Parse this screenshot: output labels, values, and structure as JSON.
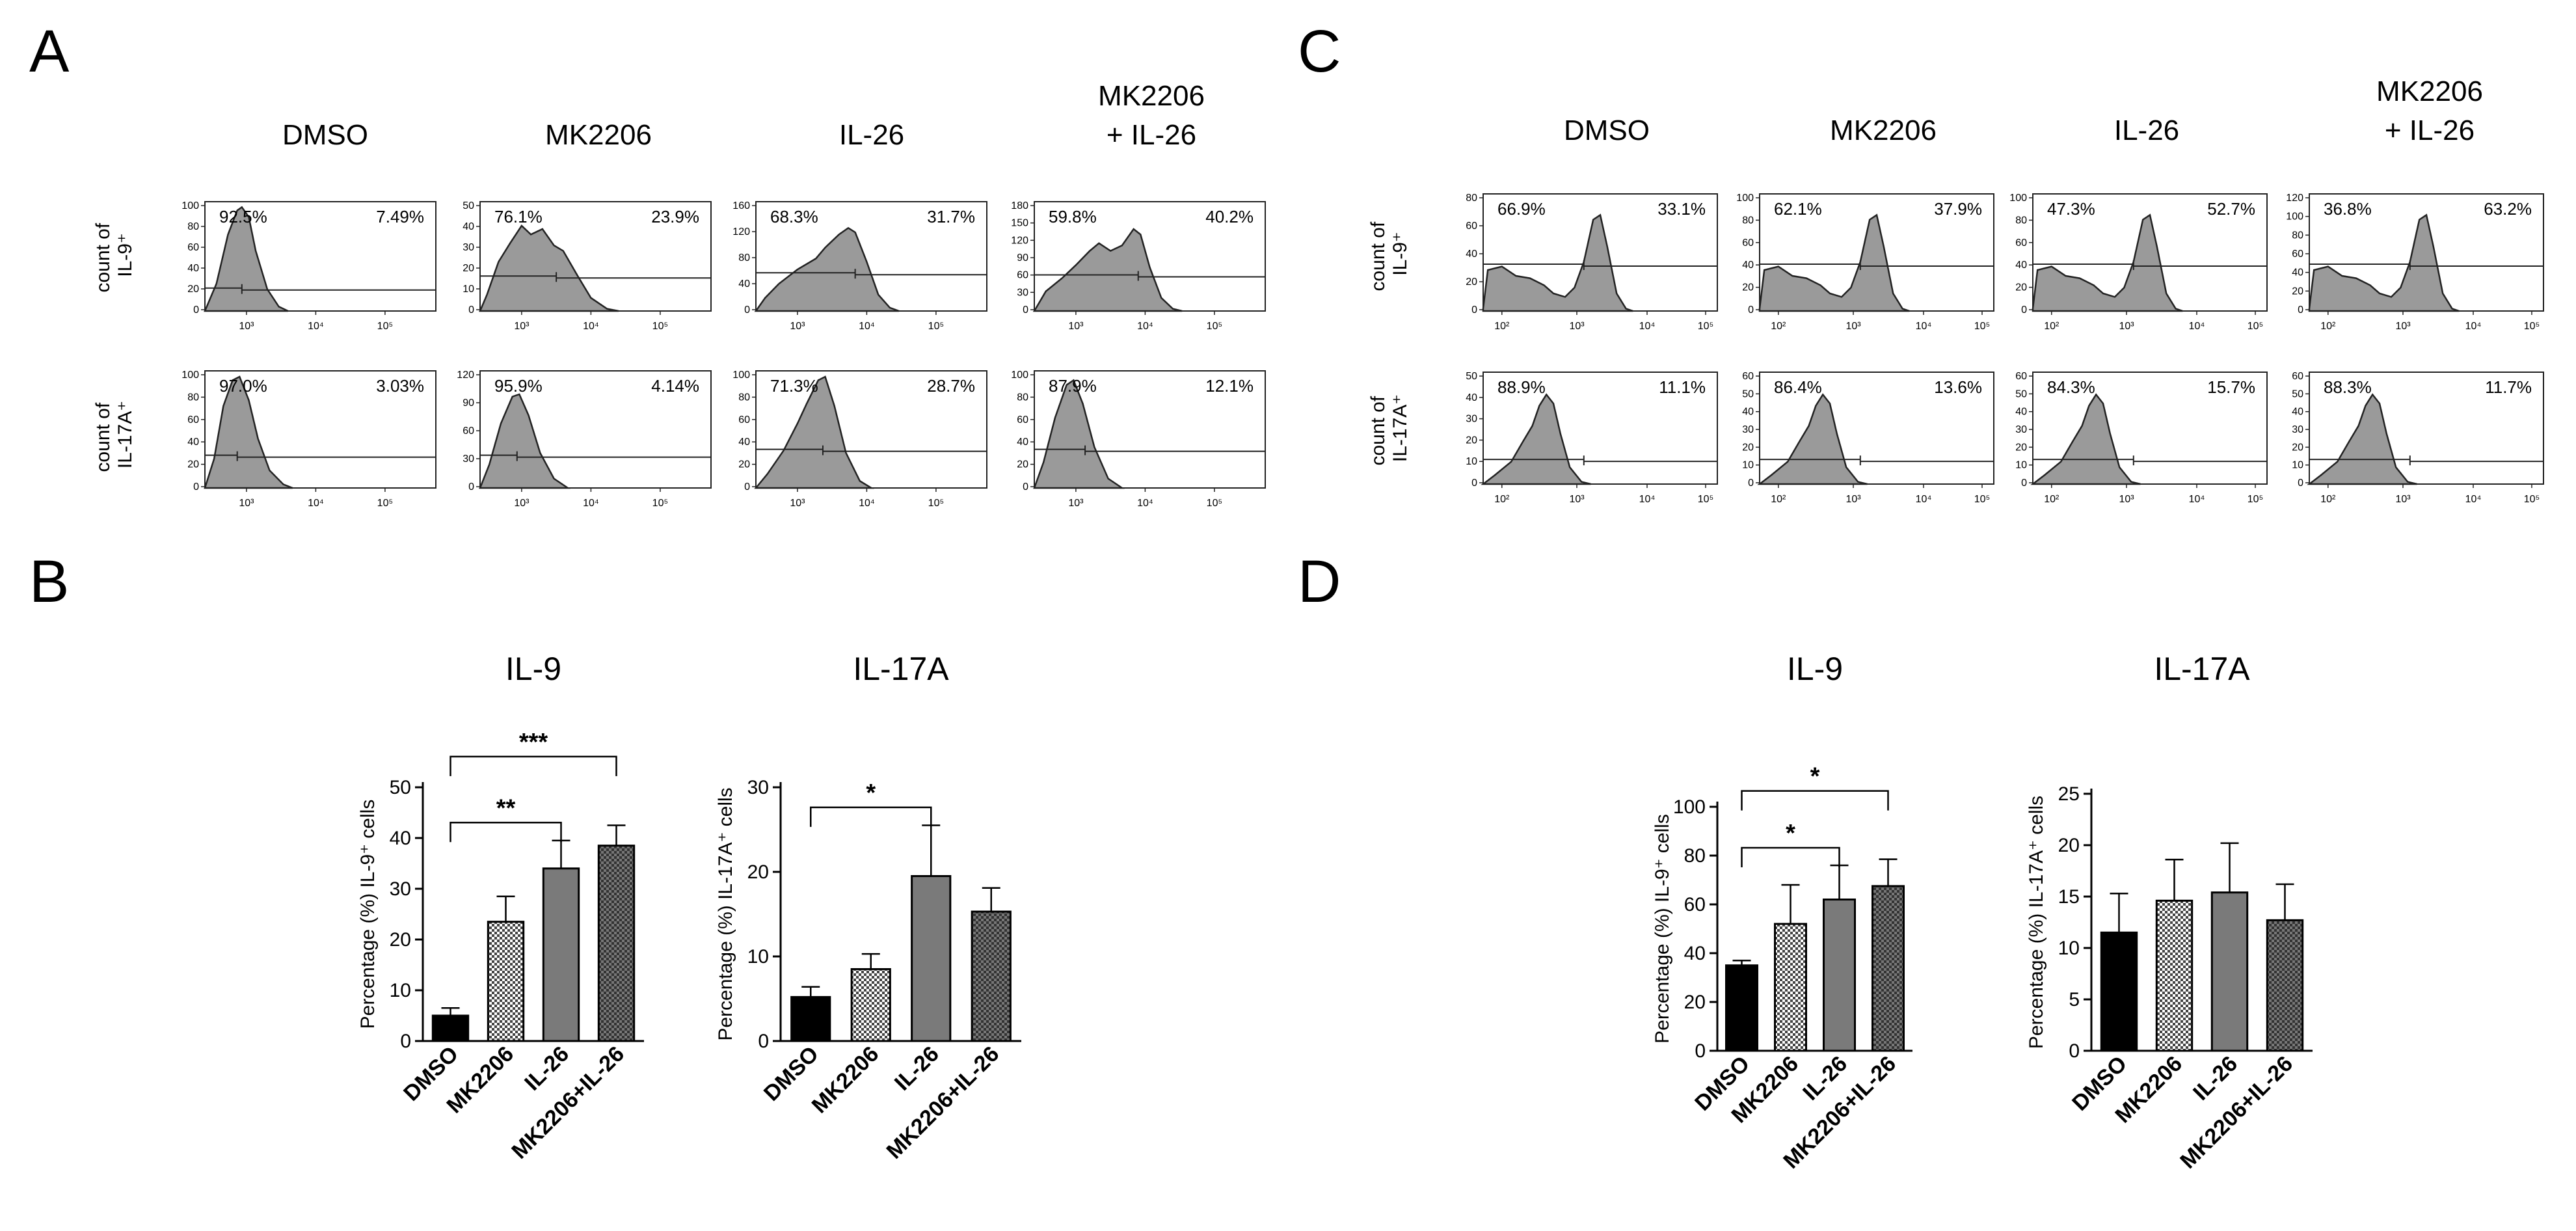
{
  "panels": {
    "A": {
      "letter": "A",
      "conditions": [
        "DMSO",
        "MK2206",
        "IL-26",
        "MK2206",
        "+ IL-26"
      ],
      "row_labels": [
        [
          "count of",
          "IL-9⁺"
        ],
        [
          "count of",
          "IL-17A⁺"
        ]
      ],
      "xticks": [
        "10³",
        "10⁴",
        "10⁵"
      ],
      "hists": [
        {
          "left": "92.5%",
          "right": "7.49%",
          "yticks": [
            "100",
            "80",
            "60",
            "40",
            "20",
            "0"
          ],
          "shape": "a_il9_dmso"
        },
        {
          "left": "76.1%",
          "right": "23.9%",
          "yticks": [
            "50",
            "40",
            "30",
            "20",
            "10",
            "0"
          ],
          "shape": "a_il9_mk"
        },
        {
          "left": "68.3%",
          "right": "31.7%",
          "yticks": [
            "160",
            "120",
            "80",
            "40",
            "0"
          ],
          "shape": "a_il9_il26"
        },
        {
          "left": "59.8%",
          "right": "40.2%",
          "yticks": [
            "180",
            "150",
            "120",
            "90",
            "60",
            "30",
            "0"
          ],
          "shape": "a_il9_combo"
        },
        {
          "left": "97.0%",
          "right": "3.03%",
          "yticks": [
            "100",
            "80",
            "60",
            "40",
            "20",
            "0"
          ],
          "shape": "a_il17_dmso"
        },
        {
          "left": "95.9%",
          "right": "4.14%",
          "yticks": [
            "120",
            "90",
            "60",
            "30",
            "0"
          ],
          "shape": "a_il17_mk"
        },
        {
          "left": "71.3%",
          "right": "28.7%",
          "yticks": [
            "100",
            "80",
            "60",
            "40",
            "20",
            "0"
          ],
          "shape": "a_il17_il26"
        },
        {
          "left": "87.9%",
          "right": "12.1%",
          "yticks": [
            "100",
            "80",
            "60",
            "40",
            "20",
            "0"
          ],
          "shape": "a_il17_combo"
        }
      ]
    },
    "C": {
      "letter": "C",
      "conditions": [
        "DMSO",
        "MK2206",
        "IL-26",
        "MK2206",
        "+ IL-26"
      ],
      "row_labels": [
        [
          "count of",
          "IL-9⁺"
        ],
        [
          "count of",
          "IL-17A⁺"
        ]
      ],
      "xticks": [
        "10²",
        "10³",
        "10⁴",
        "10⁵"
      ],
      "hists": [
        {
          "left": "66.9%",
          "right": "33.1%",
          "yticks": [
            "80",
            "60",
            "40",
            "20",
            "0"
          ],
          "shape": "c_il9"
        },
        {
          "left": "62.1%",
          "right": "37.9%",
          "yticks": [
            "100",
            "80",
            "60",
            "40",
            "20",
            "0"
          ],
          "shape": "c_il9"
        },
        {
          "left": "47.3%",
          "right": "52.7%",
          "yticks": [
            "100",
            "80",
            "60",
            "40",
            "20",
            "0"
          ],
          "shape": "c_il9"
        },
        {
          "left": "36.8%",
          "right": "63.2%",
          "yticks": [
            "120",
            "100",
            "80",
            "60",
            "40",
            "20",
            "0"
          ],
          "shape": "c_il9"
        },
        {
          "left": "88.9%",
          "right": "11.1%",
          "yticks": [
            "50",
            "40",
            "30",
            "20",
            "10",
            "0"
          ],
          "shape": "c_il17"
        },
        {
          "left": "86.4%",
          "right": "13.6%",
          "yticks": [
            "60",
            "50",
            "40",
            "30",
            "20",
            "10",
            "0"
          ],
          "shape": "c_il17"
        },
        {
          "left": "84.3%",
          "right": "15.7%",
          "yticks": [
            "60",
            "50",
            "40",
            "30",
            "20",
            "10",
            "0"
          ],
          "shape": "c_il17"
        },
        {
          "left": "88.3%",
          "right": "11.7%",
          "yticks": [
            "60",
            "50",
            "40",
            "30",
            "20",
            "10",
            "0"
          ],
          "shape": "c_il17"
        }
      ]
    },
    "B": {
      "letter": "B"
    },
    "D": {
      "letter": "D"
    }
  },
  "chart_data": [
    {
      "panel": "B",
      "type": "bar",
      "title": "IL-9",
      "ylabel": "Percentage (%) IL-9⁺ cells",
      "categories": [
        "DMSO",
        "MK2206",
        "IL-26",
        "MK2206+IL-26"
      ],
      "values": [
        5,
        23.5,
        34,
        38.5
      ],
      "errors": [
        1.5,
        5,
        5.5,
        4
      ],
      "ylim": [
        0,
        50
      ],
      "yticks": [
        0,
        10,
        20,
        30,
        40,
        50
      ],
      "significance": [
        {
          "from": 0,
          "to": 2,
          "label": "**"
        },
        {
          "from": 0,
          "to": 3,
          "label": "***"
        }
      ]
    },
    {
      "panel": "B",
      "type": "bar",
      "title": "IL-17A",
      "ylabel": "Percentage (%) IL-17A⁺ cells",
      "categories": [
        "DMSO",
        "MK2206",
        "IL-26",
        "MK2206+IL-26"
      ],
      "values": [
        5.2,
        8.5,
        19.5,
        15.3
      ],
      "errors": [
        1.2,
        1.8,
        6,
        2.8
      ],
      "ylim": [
        0,
        30
      ],
      "yticks": [
        0,
        10,
        20,
        30
      ],
      "significance": [
        {
          "from": 0,
          "to": 2,
          "label": "*"
        }
      ]
    },
    {
      "panel": "D",
      "type": "bar",
      "title": "IL-9",
      "ylabel": "Percentage (%) IL-9⁺ cells",
      "categories": [
        "DMSO",
        "MK2206",
        "IL-26",
        "MK2206+IL-26"
      ],
      "values": [
        35,
        52,
        62,
        67.5
      ],
      "errors": [
        2,
        16,
        14,
        11
      ],
      "ylim": [
        0,
        100
      ],
      "yticks": [
        0,
        20,
        40,
        60,
        80,
        100
      ],
      "significance": [
        {
          "from": 0,
          "to": 2,
          "label": "*"
        },
        {
          "from": 0,
          "to": 3,
          "label": "*"
        }
      ]
    },
    {
      "panel": "D",
      "type": "bar",
      "title": "IL-17A",
      "ylabel": "Percentage (%) IL-17A⁺ cells",
      "categories": [
        "DMSO",
        "MK2206",
        "IL-26",
        "MK2206+IL-26"
      ],
      "values": [
        11.5,
        14.6,
        15.4,
        12.7
      ],
      "errors": [
        3.8,
        4,
        4.8,
        3.5
      ],
      "ylim": [
        0,
        25
      ],
      "yticks": [
        0,
        5,
        10,
        15,
        20,
        25
      ],
      "significance": []
    }
  ]
}
